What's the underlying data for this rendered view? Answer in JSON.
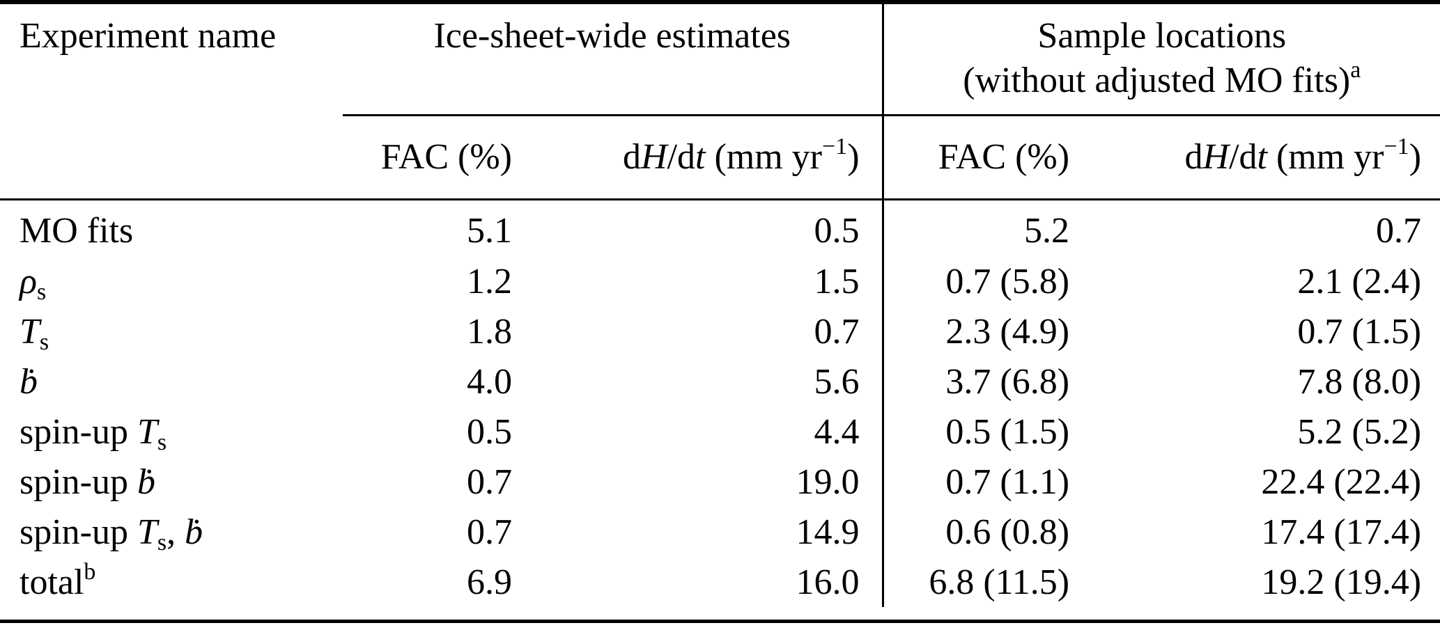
{
  "header": {
    "experiment_name": "Experiment name",
    "group1": "Ice-sheet-wide estimates",
    "group2_line1": "Sample locations",
    "group2_line2_parts": [
      {
        "t": "(without adjusted MO fits)"
      },
      {
        "sup": "a"
      }
    ],
    "sub_fac": "FAC (%)",
    "sub_dhdt_parts": [
      {
        "t": "d"
      },
      {
        "i": "H"
      },
      {
        "t": "/d"
      },
      {
        "i": "t"
      },
      {
        "t": " (mm yr"
      },
      {
        "sup": "−1"
      },
      {
        "t": ")"
      }
    ]
  },
  "rows": [
    {
      "label_parts": [
        {
          "t": "MO fits"
        }
      ],
      "values": [
        "5.1",
        "0.5",
        "5.2",
        "0.7"
      ]
    },
    {
      "label_parts": [
        {
          "i": "ρ"
        },
        {
          "sub": "s"
        }
      ],
      "values": [
        "1.2",
        "1.5",
        "0.7 (5.8)",
        "2.1 (2.4)"
      ]
    },
    {
      "label_parts": [
        {
          "i": "T"
        },
        {
          "sub": "s"
        }
      ],
      "values": [
        "1.8",
        "0.7",
        "2.3 (4.9)",
        "0.7 (1.5)"
      ]
    },
    {
      "label_parts": [
        {
          "i": "ḃ"
        }
      ],
      "values": [
        "4.0",
        "5.6",
        "3.7 (6.8)",
        "7.8 (8.0)"
      ]
    },
    {
      "label_parts": [
        {
          "t": "spin-up "
        },
        {
          "i": "T"
        },
        {
          "sub": "s"
        }
      ],
      "values": [
        "0.5",
        "4.4",
        "0.5 (1.5)",
        "5.2 (5.2)"
      ]
    },
    {
      "label_parts": [
        {
          "t": "spin-up "
        },
        {
          "i": "ḃ"
        }
      ],
      "values": [
        "0.7",
        "19.0",
        "0.7 (1.1)",
        "22.4 (22.4)"
      ]
    },
    {
      "label_parts": [
        {
          "t": "spin-up "
        },
        {
          "i": "T"
        },
        {
          "sub": "s"
        },
        {
          "t": ", "
        },
        {
          "i": "ḃ"
        }
      ],
      "values": [
        "0.7",
        "14.9",
        "0.6 (0.8)",
        "17.4 (17.4)"
      ]
    },
    {
      "label_parts": [
        {
          "t": "total"
        },
        {
          "sup": "b"
        }
      ],
      "values": [
        "6.9",
        "16.0",
        "6.8 (11.5)",
        "19.2 (19.4)"
      ]
    }
  ],
  "colors": {
    "text": "#000000",
    "background": "#ffffff",
    "rule": "#000000"
  }
}
